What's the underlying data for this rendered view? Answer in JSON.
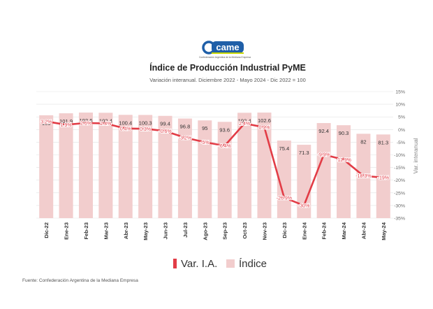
{
  "logo": {
    "text": "came",
    "tagline": "Confederación Argentina de la Mediana Empresa"
  },
  "colors": {
    "bar": "#f2cdcd",
    "line": "#e23c46",
    "logo_blue": "#1f5fa8",
    "logo_green": "#c9d700",
    "text": "#222222",
    "muted": "#666666",
    "grid": "#e2e2e2"
  },
  "source": "Fuente: Confederación Argentina de la Mediana Empresa",
  "chart_data": {
    "type": "bar",
    "title": "Índice de Producción Industrial PyME",
    "subtitle": "Variación interanual. Diciembre 2022 - Mayo 2024 - Dic 2022 = 100",
    "categories": [
      "Dic-22",
      "Ene-23",
      "Feb-23",
      "Mar-23",
      "Abr-23",
      "May-23",
      "Jun-23",
      "Jul-23",
      "Ago-23",
      "Sep-23",
      "Oct-23",
      "Nov-23",
      "Dic-23",
      "Ene-24",
      "Feb-24",
      "Mar-24",
      "Abr-24",
      "May-24"
    ],
    "series": [
      {
        "name": "Índice",
        "type": "bar",
        "values": [
          100,
          101.9,
          102.6,
          102.4,
          100.4,
          100.3,
          99.4,
          96.8,
          95,
          93.6,
          102.4,
          102.6,
          75.4,
          71.3,
          92.4,
          90.3,
          82,
          81.3
        ],
        "labels": [
          "100",
          "101.9",
          "102.6",
          "102.4",
          "100.4",
          "100.3",
          "99.4",
          "96.8",
          "95",
          "93.6",
          "102.4",
          "102.6",
          "75.4",
          "71.3",
          "92.4",
          "90.3",
          "82",
          "81.3"
        ]
      },
      {
        "name": "Var. I.A.",
        "type": "line",
        "axis": "right",
        "values": [
          3.2,
          1.9,
          2.6,
          2.4,
          0.4,
          0.3,
          -0.6,
          -3.2,
          -5,
          -6.4,
          2.4,
          0.9,
          -26.9,
          -30,
          -9.9,
          -11.9,
          -18.3,
          -19
        ],
        "labels": [
          "3.2%",
          "1.9%",
          "2.6%",
          "2.4%",
          "0.4%",
          "0.3%",
          "-0.6%",
          "-3.2%",
          "-5%",
          "-6.4%",
          "2.4%",
          "0.9%",
          "-26.9%",
          "-30%",
          "-9.9%",
          "-11.9%",
          "-18.3%",
          "-19%"
        ]
      }
    ],
    "y_right": {
      "label": "Var. interanual",
      "ylim": [
        -35,
        15
      ],
      "ticks": [
        "15%",
        "10%",
        "5%",
        "0%",
        "-5%",
        "-10%",
        "-15%",
        "-20%",
        "-25%",
        "-30%",
        "-35%"
      ],
      "tick_values": [
        15,
        10,
        5,
        0,
        -5,
        -10,
        -15,
        -20,
        -25,
        -30,
        -35
      ]
    },
    "bar_scale_max": 123,
    "grid": true,
    "legend": [
      {
        "label": "Var. I.A.",
        "marker": "line"
      },
      {
        "label": "Índice",
        "marker": "square"
      }
    ],
    "legend_position": "bottom"
  }
}
